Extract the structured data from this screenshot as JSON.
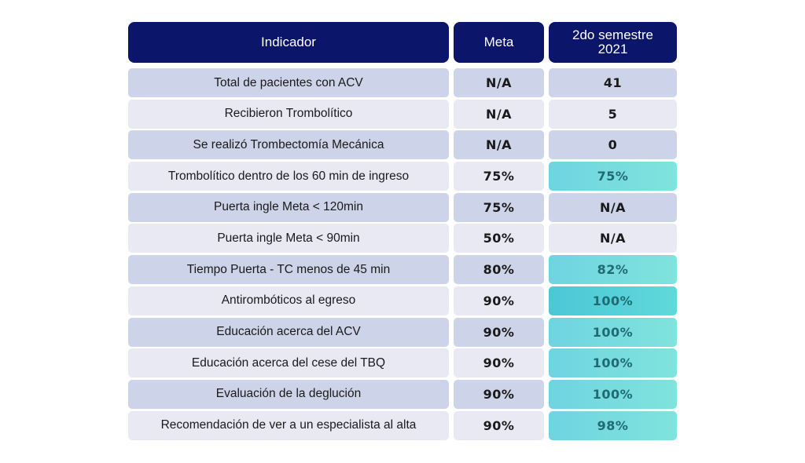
{
  "headers": {
    "indicador": "Indicador",
    "meta": "Meta",
    "period": "2do semestre 2021"
  },
  "rows": [
    {
      "indicador": "Total de pacientes con ACV",
      "meta": "N/A",
      "value": "41",
      "highlight": ""
    },
    {
      "indicador": "Recibieron Trombolítico",
      "meta": "N/A",
      "value": "5",
      "highlight": ""
    },
    {
      "indicador": "Se realizó Trombectomía Mecánica",
      "meta": "N/A",
      "value": "0",
      "highlight": ""
    },
    {
      "indicador": "Trombolítico dentro de los 60 min de ingreso",
      "meta": "75%",
      "value": "75%",
      "highlight": "hl"
    },
    {
      "indicador": "Puerta ingle Meta < 120min",
      "meta": "75%",
      "value": "N/A",
      "highlight": ""
    },
    {
      "indicador": "Puerta ingle Meta < 90min",
      "meta": "50%",
      "value": "N/A",
      "highlight": ""
    },
    {
      "indicador": "Tiempo Puerta - TC menos de 45 min",
      "meta": "80%",
      "value": "82%",
      "highlight": "hl"
    },
    {
      "indicador": "Antirombóticos al egreso",
      "meta": "90%",
      "value": "100%",
      "highlight": "hl2"
    },
    {
      "indicador": "Educación acerca del ACV",
      "meta": "90%",
      "value": "100%",
      "highlight": "hl"
    },
    {
      "indicador": "Educación acerca del cese del TBQ",
      "meta": "90%",
      "value": "100%",
      "highlight": "hl"
    },
    {
      "indicador": "Evaluación de la deglución",
      "meta": "90%",
      "value": "100%",
      "highlight": "hl"
    },
    {
      "indicador": "Recomendación de ver a un especialista al alta",
      "meta": "90%",
      "value": "98%",
      "highlight": "hl"
    }
  ]
}
